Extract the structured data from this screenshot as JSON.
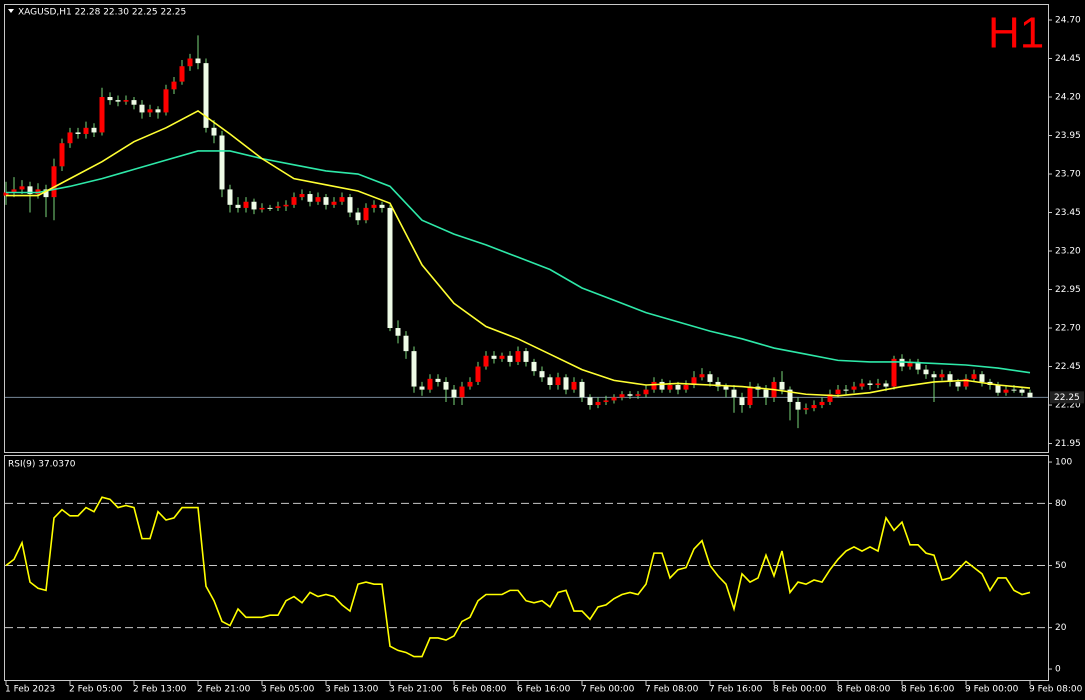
{
  "chart_data": [
    {
      "type": "candlestick",
      "title": "XAGUSD,H1  22.28 22.30 22.25 22.25",
      "annotation": "H1",
      "categories": [
        "1 Feb 2023",
        null,
        null,
        null,
        null,
        null,
        null,
        null,
        "2 Feb 05:00",
        null,
        null,
        null,
        null,
        null,
        null,
        null,
        "2 Feb 13:00",
        null,
        null,
        null,
        null,
        null,
        null,
        null,
        "2 Feb 21:00",
        null,
        null,
        null,
        null,
        null,
        null,
        null,
        "3 Feb 05:00",
        null,
        null,
        null,
        null,
        null,
        null,
        null,
        "3 Feb 13:00",
        null,
        null,
        null,
        null,
        null,
        null,
        null,
        "3 Feb 21:00",
        null,
        null,
        null,
        null,
        null,
        null,
        null,
        "6 Feb 08:00",
        null,
        null,
        null,
        null,
        null,
        null,
        null,
        "6 Feb 16:00",
        null,
        null,
        null,
        null,
        null,
        null,
        null,
        "7 Feb 00:00",
        null,
        null,
        null,
        null,
        null,
        null,
        null,
        "7 Feb 08:00",
        null,
        null,
        null,
        null,
        null,
        null,
        null,
        "7 Feb 16:00",
        null,
        null,
        null,
        null,
        null,
        null,
        null,
        "8 Feb 00:00",
        null,
        null,
        null,
        null,
        null,
        null,
        null,
        "8 Feb 08:00",
        null,
        null,
        null,
        null,
        null,
        null,
        null,
        "8 Feb 16:00",
        null,
        null,
        null,
        null,
        null,
        null,
        null,
        "9 Feb 00:00",
        null,
        null,
        null,
        null,
        null,
        null,
        null,
        "9 Feb 08:00"
      ],
      "ohlc": [
        [
          23.56,
          23.65,
          23.5,
          23.58
        ],
        [
          23.58,
          23.68,
          23.55,
          23.6
        ],
        [
          23.6,
          23.66,
          23.57,
          23.62
        ],
        [
          23.62,
          23.65,
          23.45,
          23.57
        ],
        [
          23.57,
          23.64,
          23.54,
          23.6
        ],
        [
          23.6,
          23.63,
          23.42,
          23.55
        ],
        [
          23.55,
          23.8,
          23.4,
          23.75
        ],
        [
          23.75,
          23.93,
          23.72,
          23.9
        ],
        [
          23.9,
          24.0,
          23.87,
          23.97
        ],
        [
          23.97,
          24.0,
          23.93,
          23.96
        ],
        [
          23.96,
          24.04,
          23.93,
          24.0
        ],
        [
          24.0,
          24.03,
          23.94,
          23.97
        ],
        [
          23.97,
          24.26,
          23.95,
          24.2
        ],
        [
          24.2,
          24.23,
          24.15,
          24.18
        ],
        [
          24.18,
          24.21,
          24.14,
          24.17
        ],
        [
          24.17,
          24.21,
          24.15,
          24.18
        ],
        [
          24.18,
          24.2,
          24.12,
          24.15
        ],
        [
          24.15,
          24.18,
          24.06,
          24.1
        ],
        [
          24.1,
          24.15,
          24.07,
          24.12
        ],
        [
          24.12,
          24.14,
          24.06,
          24.1
        ],
        [
          24.1,
          24.28,
          24.08,
          24.25
        ],
        [
          24.25,
          24.33,
          24.22,
          24.3
        ],
        [
          24.3,
          24.44,
          24.28,
          24.4
        ],
        [
          24.4,
          24.48,
          24.37,
          24.45
        ],
        [
          24.45,
          24.6,
          24.38,
          24.42
        ],
        [
          24.42,
          24.45,
          23.97,
          24.0
        ],
        [
          24.0,
          24.05,
          23.9,
          23.95
        ],
        [
          23.95,
          23.98,
          23.55,
          23.6
        ],
        [
          23.6,
          23.63,
          23.45,
          23.5
        ],
        [
          23.5,
          23.55,
          23.45,
          23.48
        ],
        [
          23.48,
          23.55,
          23.45,
          23.52
        ],
        [
          23.52,
          23.54,
          23.44,
          23.47
        ],
        [
          23.47,
          23.51,
          23.45,
          23.48
        ],
        [
          23.48,
          23.5,
          23.46,
          23.48
        ],
        [
          23.48,
          23.52,
          23.46,
          23.49
        ],
        [
          23.49,
          23.53,
          23.46,
          23.5
        ],
        [
          23.5,
          23.58,
          23.48,
          23.55
        ],
        [
          23.55,
          23.6,
          23.53,
          23.57
        ],
        [
          23.57,
          23.59,
          23.49,
          23.52
        ],
        [
          23.52,
          23.58,
          23.5,
          23.55
        ],
        [
          23.55,
          23.57,
          23.47,
          23.5
        ],
        [
          23.5,
          23.55,
          23.48,
          23.52
        ],
        [
          23.52,
          23.58,
          23.5,
          23.55
        ],
        [
          23.55,
          23.57,
          23.42,
          23.45
        ],
        [
          23.45,
          23.48,
          23.37,
          23.4
        ],
        [
          23.4,
          23.51,
          23.38,
          23.48
        ],
        [
          23.48,
          23.53,
          23.45,
          23.5
        ],
        [
          23.5,
          23.52,
          23.45,
          23.48
        ],
        [
          23.48,
          23.5,
          22.68,
          22.7
        ],
        [
          22.7,
          22.75,
          22.6,
          22.65
        ],
        [
          22.65,
          22.68,
          22.5,
          22.55
        ],
        [
          22.55,
          22.58,
          22.28,
          22.32
        ],
        [
          22.32,
          22.35,
          22.26,
          22.3
        ],
        [
          22.3,
          22.4,
          22.28,
          22.37
        ],
        [
          22.37,
          22.4,
          22.32,
          22.35
        ],
        [
          22.35,
          22.38,
          22.22,
          22.3
        ],
        [
          22.3,
          22.33,
          22.2,
          22.25
        ],
        [
          22.25,
          22.35,
          22.2,
          22.32
        ],
        [
          22.32,
          22.38,
          22.3,
          22.35
        ],
        [
          22.35,
          22.48,
          22.33,
          22.45
        ],
        [
          22.45,
          22.55,
          22.43,
          22.52
        ],
        [
          22.52,
          22.55,
          22.47,
          22.5
        ],
        [
          22.5,
          22.54,
          22.48,
          22.52
        ],
        [
          22.52,
          22.55,
          22.45,
          22.48
        ],
        [
          22.48,
          22.58,
          22.46,
          22.55
        ],
        [
          22.55,
          22.57,
          22.45,
          22.48
        ],
        [
          22.48,
          22.5,
          22.39,
          22.42
        ],
        [
          22.42,
          22.45,
          22.35,
          22.38
        ],
        [
          22.38,
          22.4,
          22.3,
          22.33
        ],
        [
          22.33,
          22.41,
          22.3,
          22.38
        ],
        [
          22.38,
          22.4,
          22.27,
          22.3
        ],
        [
          22.3,
          22.38,
          22.28,
          22.35
        ],
        [
          22.35,
          22.37,
          22.22,
          22.25
        ],
        [
          22.25,
          22.27,
          22.17,
          22.2
        ],
        [
          22.2,
          22.25,
          22.18,
          22.22
        ],
        [
          22.22,
          22.26,
          22.2,
          22.23
        ],
        [
          22.23,
          22.27,
          22.21,
          22.25
        ],
        [
          22.25,
          22.29,
          22.23,
          22.27
        ],
        [
          22.27,
          22.29,
          22.24,
          22.26
        ],
        [
          22.26,
          22.29,
          22.24,
          22.27
        ],
        [
          22.27,
          22.33,
          22.25,
          22.3
        ],
        [
          22.3,
          22.38,
          22.28,
          22.35
        ],
        [
          22.35,
          22.37,
          22.28,
          22.3
        ],
        [
          22.3,
          22.36,
          22.28,
          22.33
        ],
        [
          22.33,
          22.35,
          22.27,
          22.3
        ],
        [
          22.3,
          22.36,
          22.28,
          22.33
        ],
        [
          22.33,
          22.42,
          22.31,
          22.38
        ],
        [
          22.38,
          22.44,
          22.36,
          22.4
        ],
        [
          22.4,
          22.42,
          22.32,
          22.35
        ],
        [
          22.35,
          22.38,
          22.29,
          22.32
        ],
        [
          22.32,
          22.34,
          22.25,
          22.3
        ],
        [
          22.3,
          22.33,
          22.15,
          22.25
        ],
        [
          22.25,
          22.28,
          22.15,
          22.2
        ],
        [
          22.2,
          22.35,
          22.18,
          22.32
        ],
        [
          22.32,
          22.34,
          22.25,
          22.3
        ],
        [
          22.3,
          22.33,
          22.2,
          22.25
        ],
        [
          22.25,
          22.38,
          22.22,
          22.35
        ],
        [
          22.35,
          22.42,
          22.27,
          22.3
        ],
        [
          22.3,
          22.32,
          22.1,
          22.22
        ],
        [
          22.22,
          22.25,
          22.05,
          22.17
        ],
        [
          22.17,
          22.21,
          22.14,
          22.18
        ],
        [
          22.18,
          22.23,
          22.16,
          22.2
        ],
        [
          22.2,
          22.25,
          22.18,
          22.22
        ],
        [
          22.22,
          22.3,
          22.2,
          22.27
        ],
        [
          22.27,
          22.33,
          22.25,
          22.3
        ],
        [
          22.3,
          22.33,
          22.27,
          22.3
        ],
        [
          22.3,
          22.35,
          22.28,
          22.32
        ],
        [
          22.32,
          22.37,
          22.3,
          22.34
        ],
        [
          22.34,
          22.36,
          22.3,
          22.33
        ],
        [
          22.33,
          22.37,
          22.31,
          22.34
        ],
        [
          22.34,
          22.36,
          22.29,
          22.32
        ],
        [
          22.32,
          22.52,
          22.3,
          22.5
        ],
        [
          22.5,
          22.53,
          22.42,
          22.45
        ],
        [
          22.45,
          22.5,
          22.43,
          22.48
        ],
        [
          22.48,
          22.5,
          22.4,
          22.43
        ],
        [
          22.43,
          22.46,
          22.37,
          22.4
        ],
        [
          22.4,
          22.42,
          22.22,
          22.38
        ],
        [
          22.38,
          22.43,
          22.36,
          22.4
        ],
        [
          22.4,
          22.42,
          22.32,
          22.35
        ],
        [
          22.35,
          22.37,
          22.29,
          22.32
        ],
        [
          22.32,
          22.4,
          22.3,
          22.37
        ],
        [
          22.37,
          22.43,
          22.35,
          22.4
        ],
        [
          22.4,
          22.42,
          22.32,
          22.35
        ],
        [
          22.35,
          22.37,
          22.3,
          22.33
        ],
        [
          22.33,
          22.35,
          22.26,
          22.28
        ],
        [
          22.28,
          22.32,
          22.26,
          22.3
        ],
        [
          22.3,
          22.33,
          22.28,
          22.3
        ],
        [
          22.3,
          22.32,
          22.26,
          22.28
        ],
        [
          22.28,
          22.3,
          22.25,
          22.25
        ]
      ],
      "bull_color": "#ff0000",
      "bear_color": "#eefbe6",
      "wick_color": "#7ad67a",
      "moving_averages": [
        {
          "color": "#2ee8a8",
          "x": [
            0,
            4,
            8,
            12,
            16,
            20,
            24,
            28,
            32,
            36,
            40,
            44,
            48,
            52,
            56,
            60,
            64,
            68,
            72,
            76,
            80,
            84,
            88,
            92,
            96,
            100,
            104,
            108,
            112,
            116,
            120,
            124,
            128
          ],
          "values": [
            23.58,
            23.58,
            23.62,
            23.67,
            23.73,
            23.79,
            23.85,
            23.85,
            23.8,
            23.76,
            23.72,
            23.7,
            23.62,
            23.4,
            23.31,
            23.24,
            23.16,
            23.08,
            22.96,
            22.88,
            22.8,
            22.74,
            22.68,
            22.63,
            22.57,
            22.53,
            22.49,
            22.48,
            22.48,
            22.47,
            22.46,
            22.44,
            22.41
          ]
        },
        {
          "color": "#ffff33",
          "x": [
            0,
            4,
            8,
            12,
            16,
            20,
            24,
            28,
            32,
            36,
            40,
            44,
            48,
            52,
            56,
            60,
            64,
            68,
            72,
            76,
            80,
            84,
            88,
            92,
            96,
            100,
            104,
            108,
            112,
            116,
            120,
            124,
            128
          ],
          "values": [
            23.56,
            23.56,
            23.67,
            23.78,
            23.91,
            24.0,
            24.11,
            23.96,
            23.8,
            23.67,
            23.63,
            23.59,
            23.51,
            23.11,
            22.86,
            22.71,
            22.63,
            22.53,
            22.43,
            22.36,
            22.33,
            22.34,
            22.33,
            22.32,
            22.3,
            22.27,
            22.26,
            22.28,
            22.32,
            22.35,
            22.36,
            22.33,
            22.31
          ]
        }
      ],
      "price_line": 22.25,
      "price_line_color": "#778899",
      "ylim": [
        21.895,
        24.804
      ],
      "yticks": [
        {
          "value": 24.7,
          "label": "24.70"
        },
        24.45,
        {
          "value": 24.2,
          "label": "24.20"
        },
        23.95,
        {
          "value": 23.7,
          "label": "23.70"
        },
        23.45,
        {
          "value": 23.2,
          "label": "23.20"
        },
        22.95,
        {
          "value": 22.7,
          "label": "22.70"
        },
        22.45,
        {
          "value": 22.2,
          "label": "22.20"
        },
        21.95
      ]
    },
    {
      "type": "line",
      "title": "RSI(9) 37.0370",
      "color": "#ffff00",
      "values": [
        50,
        53,
        61,
        42,
        39,
        38,
        73,
        77,
        74,
        74,
        78,
        76,
        83,
        82,
        78,
        79,
        78,
        63,
        63,
        76,
        72,
        73,
        78,
        78,
        78,
        40,
        33,
        23,
        21,
        29,
        25,
        25,
        25,
        26,
        26,
        33,
        35,
        32,
        37,
        35,
        36,
        35,
        31,
        28,
        41,
        42,
        41,
        41,
        11,
        9,
        8,
        6,
        6,
        15,
        15,
        14,
        16,
        23,
        25,
        33,
        36,
        36,
        36,
        38,
        38,
        33,
        32,
        33,
        30,
        37,
        38,
        28,
        28,
        24,
        30,
        31,
        34,
        36,
        37,
        36,
        41,
        56,
        56,
        44,
        48,
        49,
        58,
        62,
        50,
        45,
        41,
        29,
        46,
        42,
        44,
        55,
        45,
        57,
        37,
        42,
        41,
        43,
        42,
        48,
        53,
        57,
        59,
        57,
        59,
        57,
        73,
        67,
        71,
        60,
        60,
        56,
        55,
        43,
        44,
        48,
        52,
        49,
        46,
        38,
        44,
        44,
        38,
        36,
        37
      ],
      "ylim": [
        -5.3,
        103.4
      ],
      "yticks": [
        100,
        80,
        50,
        20,
        0
      ],
      "levels": [
        80,
        50,
        20
      ]
    }
  ]
}
